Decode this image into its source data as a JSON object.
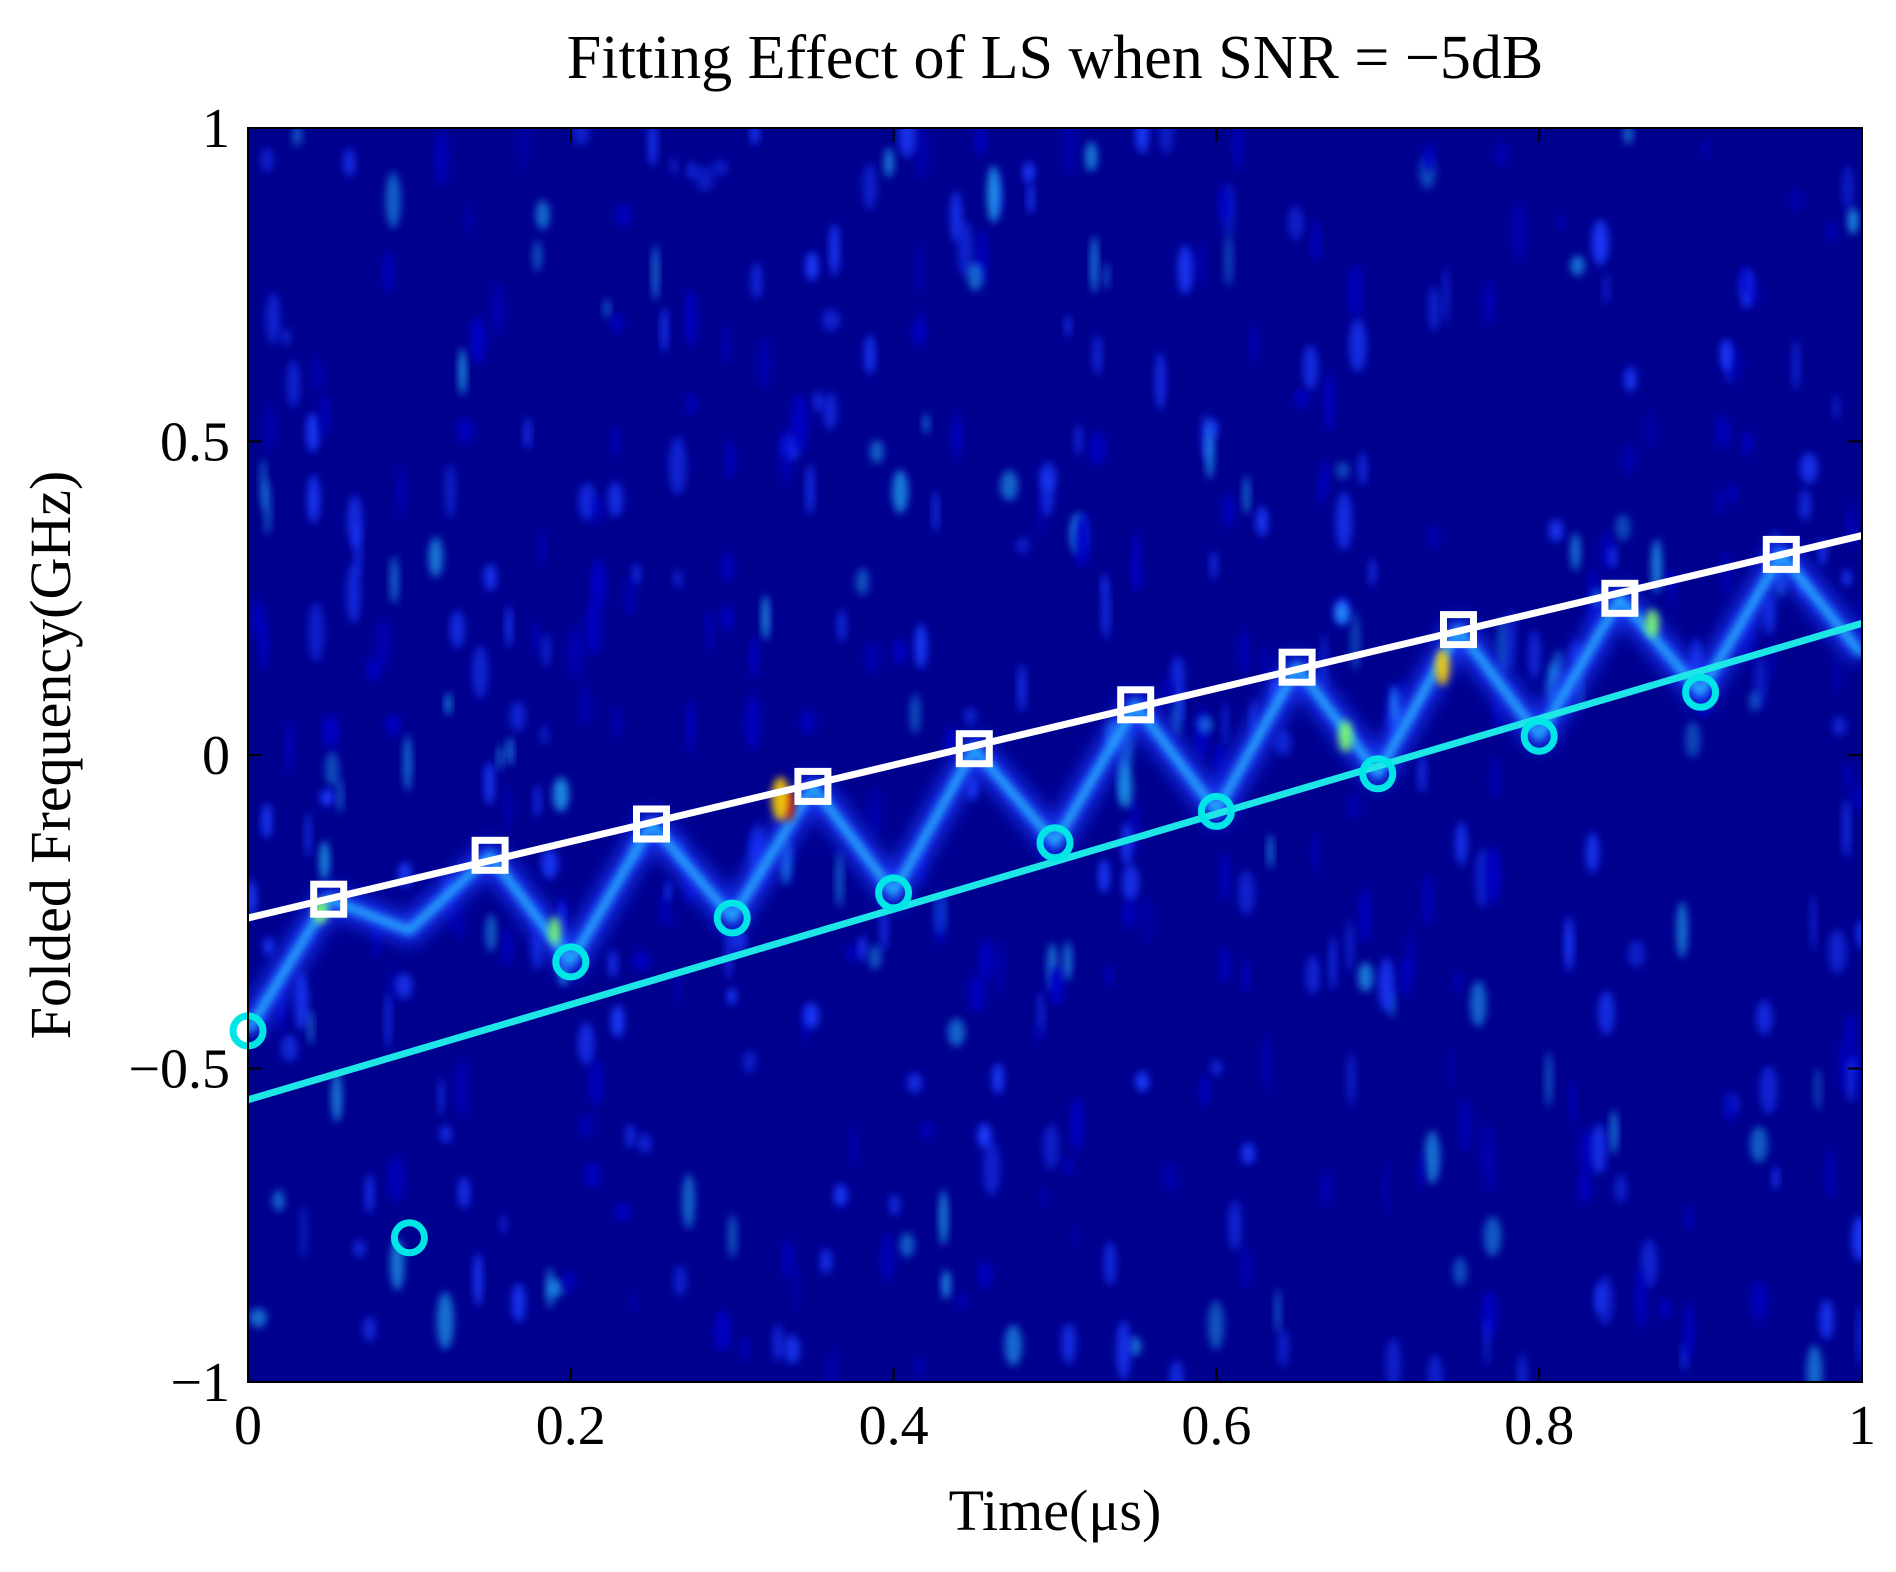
{
  "chart_data": {
    "type": "scatter",
    "title": "Fitting Effect of LS when SNR = −5dB",
    "xlabel": "Time(μs)",
    "ylabel": "Folded Frequency(GHz)",
    "xlim": [
      0,
      1
    ],
    "ylim": [
      -1,
      1
    ],
    "x_ticks": [
      0,
      0.2,
      0.4,
      0.6,
      0.8,
      1
    ],
    "x_tick_labels": [
      "0",
      "0.2",
      "0.4",
      "0.6",
      "0.8",
      "1"
    ],
    "y_ticks": [
      -1,
      -0.5,
      0,
      0.5,
      1
    ],
    "y_tick_labels": [
      "−1",
      "−0.5",
      "0",
      "0.5",
      "1"
    ],
    "grid": false,
    "background": "time-frequency spectrogram heatmap (jet colormap)",
    "series": [
      {
        "name": "square-markers",
        "marker": "square",
        "color": "#ffffff",
        "x": [
          0.05,
          0.15,
          0.25,
          0.35,
          0.45,
          0.55,
          0.65,
          0.75,
          0.85,
          0.95
        ],
        "y": [
          -0.23,
          -0.16,
          -0.11,
          -0.05,
          0.01,
          0.08,
          0.14,
          0.2,
          0.25,
          0.32
        ]
      },
      {
        "name": "circle-markers",
        "marker": "circle",
        "color": "#00e5e5",
        "x": [
          0.0,
          0.1,
          0.2,
          0.3,
          0.4,
          0.5,
          0.6,
          0.7,
          0.8,
          0.9
        ],
        "y": [
          -0.44,
          -0.77,
          -0.33,
          -0.26,
          -0.22,
          -0.14,
          -0.09,
          -0.03,
          0.03,
          0.1
        ]
      },
      {
        "name": "white-fit-line",
        "type": "line",
        "color": "#ffffff",
        "x": [
          0,
          1
        ],
        "y": [
          -0.26,
          0.35
        ]
      },
      {
        "name": "cyan-fit-line",
        "type": "line",
        "color": "#1ee6e6",
        "x": [
          0,
          1
        ],
        "y": [
          -0.55,
          0.21
        ]
      }
    ],
    "colors": {
      "background_dark": "#00008f",
      "background_mid": "#0000c8",
      "signal_blue": "#1a3cff",
      "signal_cyan": "#27b9ff",
      "signal_green": "#7fff6a",
      "signal_yellow": "#ffd000",
      "signal_red": "#cc0000"
    }
  }
}
